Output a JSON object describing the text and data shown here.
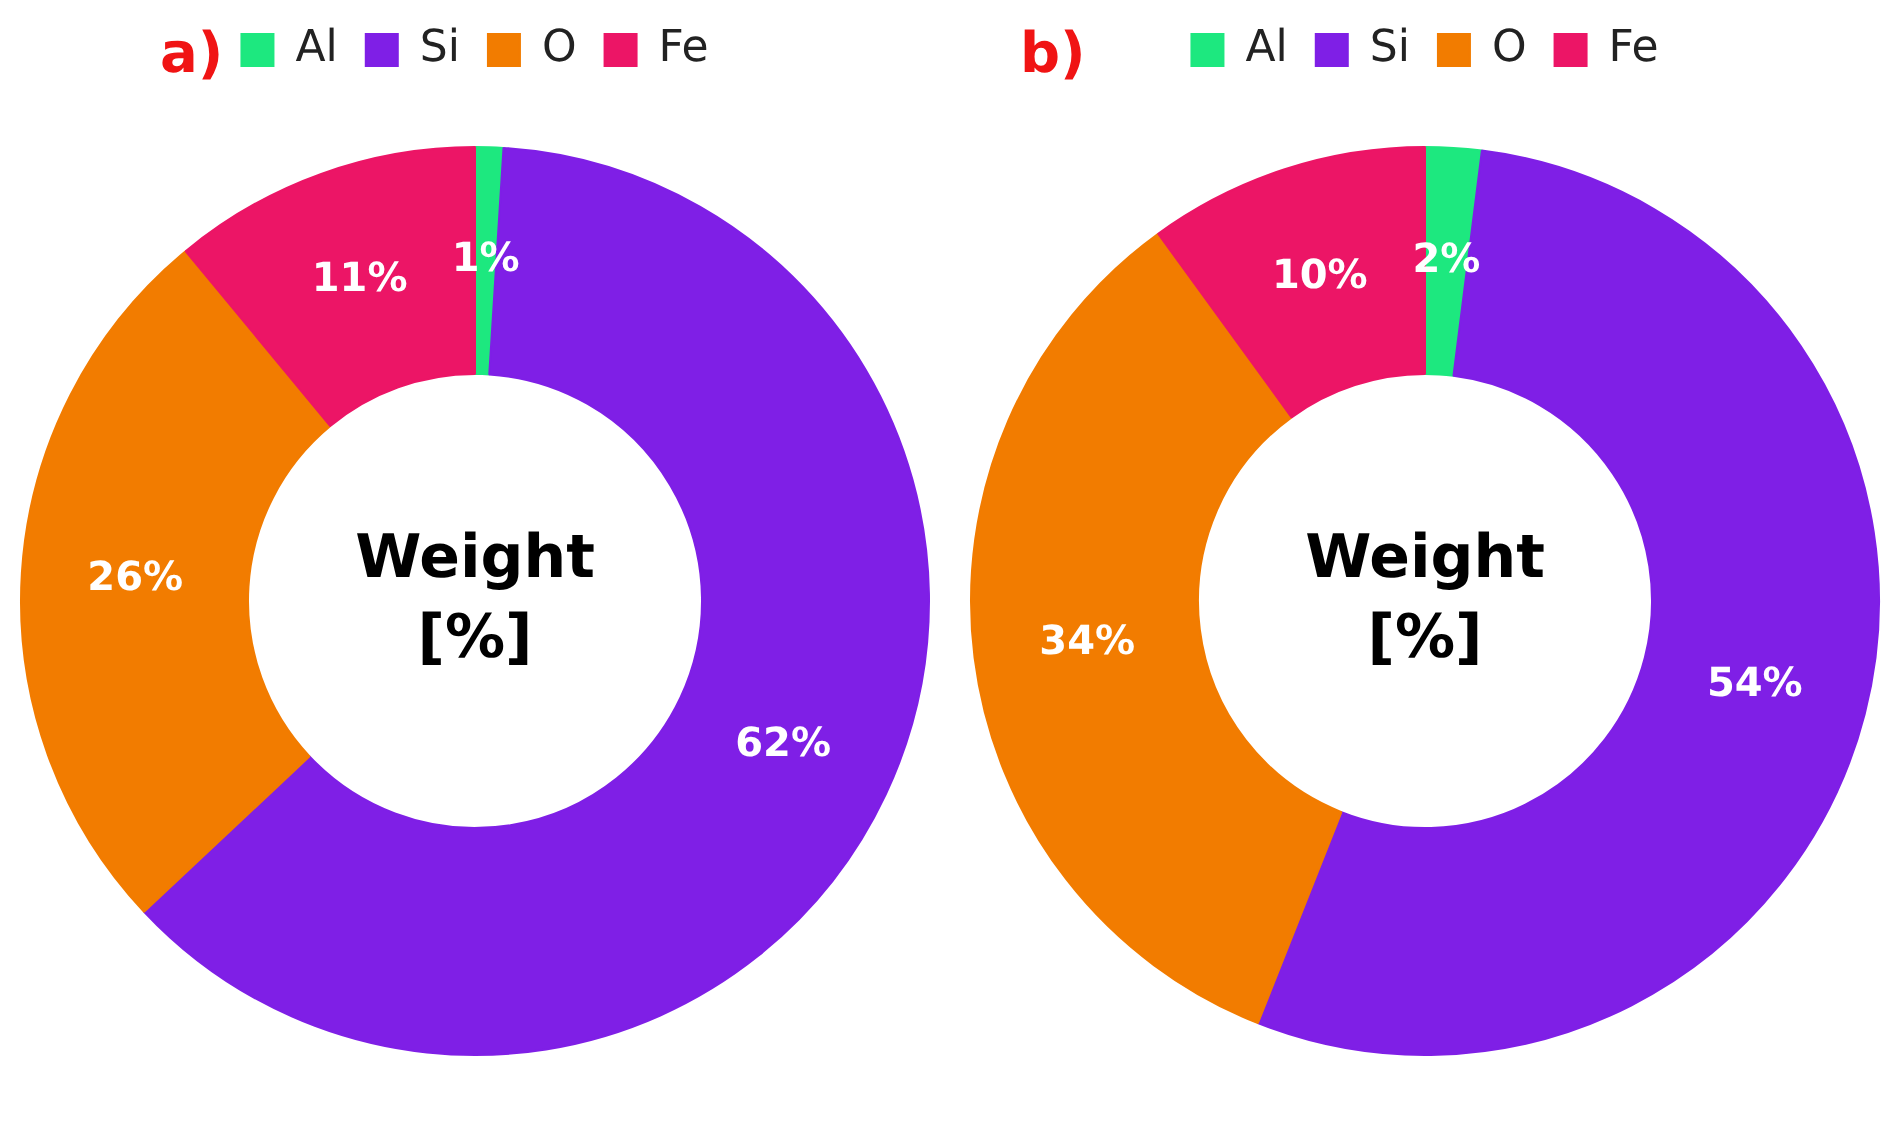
{
  "chart_data": [
    {
      "type": "donut",
      "title": "a)",
      "categories": [
        "Al",
        "Si",
        "O",
        "Fe"
      ],
      "values": [
        1,
        62,
        26,
        11
      ],
      "colors": [
        "#1de87f",
        "#7f1fe6",
        "#f27c00",
        "#ec1566"
      ],
      "value_labels": [
        "1%",
        "62%",
        "26%",
        "11%"
      ],
      "legend": "top",
      "annotations": [
        "Weight [%]"
      ]
    },
    {
      "type": "donut",
      "title": "b)",
      "categories": [
        "Al",
        "Si",
        "O",
        "Fe"
      ],
      "values": [
        2,
        54,
        34,
        10
      ],
      "colors": [
        "#1de87f",
        "#7f1fe6",
        "#f27c00",
        "#ec1566"
      ],
      "value_labels": [
        "2%",
        "54%",
        "34%",
        "10%"
      ],
      "legend": "top",
      "annotations": [
        "Weight [%]"
      ]
    }
  ]
}
